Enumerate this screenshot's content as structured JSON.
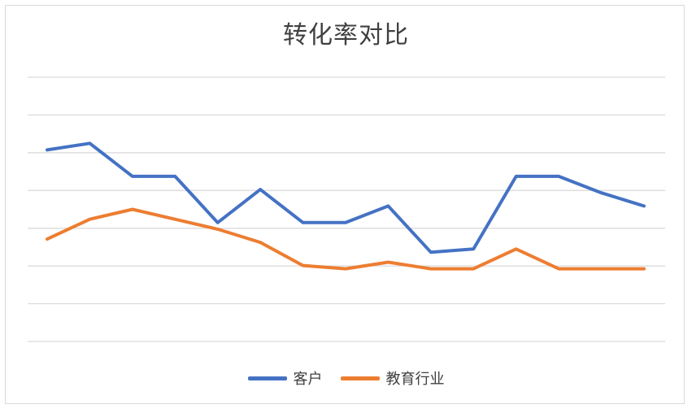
{
  "chart_data": {
    "type": "line",
    "title": "转化率对比",
    "xlabel": "",
    "ylabel": "",
    "grid": true,
    "legend_position": "bottom",
    "x": [
      1,
      2,
      3,
      4,
      5,
      6,
      7,
      8,
      9,
      10,
      11,
      12,
      13,
      14,
      15
    ],
    "ylim": [
      0,
      8
    ],
    "series": [
      {
        "name": "客户",
        "color": "#4472C4",
        "values": [
          5.8,
          6.0,
          5.0,
          5.0,
          3.6,
          4.6,
          3.6,
          3.6,
          4.1,
          2.7,
          2.8,
          5.0,
          5.0,
          4.5,
          4.1
        ]
      },
      {
        "name": "教育行业",
        "color": "#ED7D31",
        "values": [
          3.1,
          3.7,
          4.0,
          3.7,
          3.4,
          3.0,
          2.3,
          2.2,
          2.4,
          2.2,
          2.2,
          2.8,
          2.2,
          2.2,
          2.2
        ]
      }
    ]
  }
}
